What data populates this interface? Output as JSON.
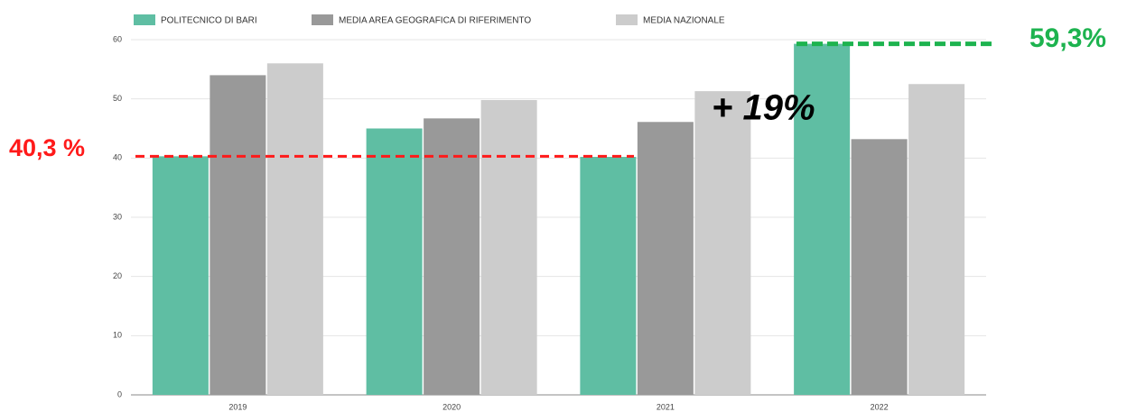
{
  "chart_data": {
    "type": "bar",
    "categories": [
      "2019",
      "2020",
      "2021",
      "2022"
    ],
    "series": [
      {
        "name": "POLITECNICO DI BARI",
        "color": "#5fbea3",
        "values": [
          40.3,
          45,
          40.2,
          59.3
        ]
      },
      {
        "name": "MEDIA AREA GEOGRAFICA DI RIFERIMENTO",
        "color": "#999999",
        "values": [
          54,
          46.7,
          46.1,
          43.2
        ]
      },
      {
        "name": "MEDIA NAZIONALE",
        "color": "#cccccc",
        "values": [
          56,
          49.8,
          51.3,
          52.5
        ]
      }
    ],
    "ylim": [
      0,
      60
    ],
    "yticks": [
      0,
      10,
      20,
      30,
      40,
      50,
      60
    ],
    "grid": true,
    "annotations": [
      {
        "label": "40,3 %",
        "value": 40.3,
        "color": "#ff1a1a"
      },
      {
        "label": "59,3%",
        "value": 59.3,
        "color": "#1db34f"
      },
      {
        "label": "+ 19%",
        "color": "#000000"
      }
    ]
  }
}
